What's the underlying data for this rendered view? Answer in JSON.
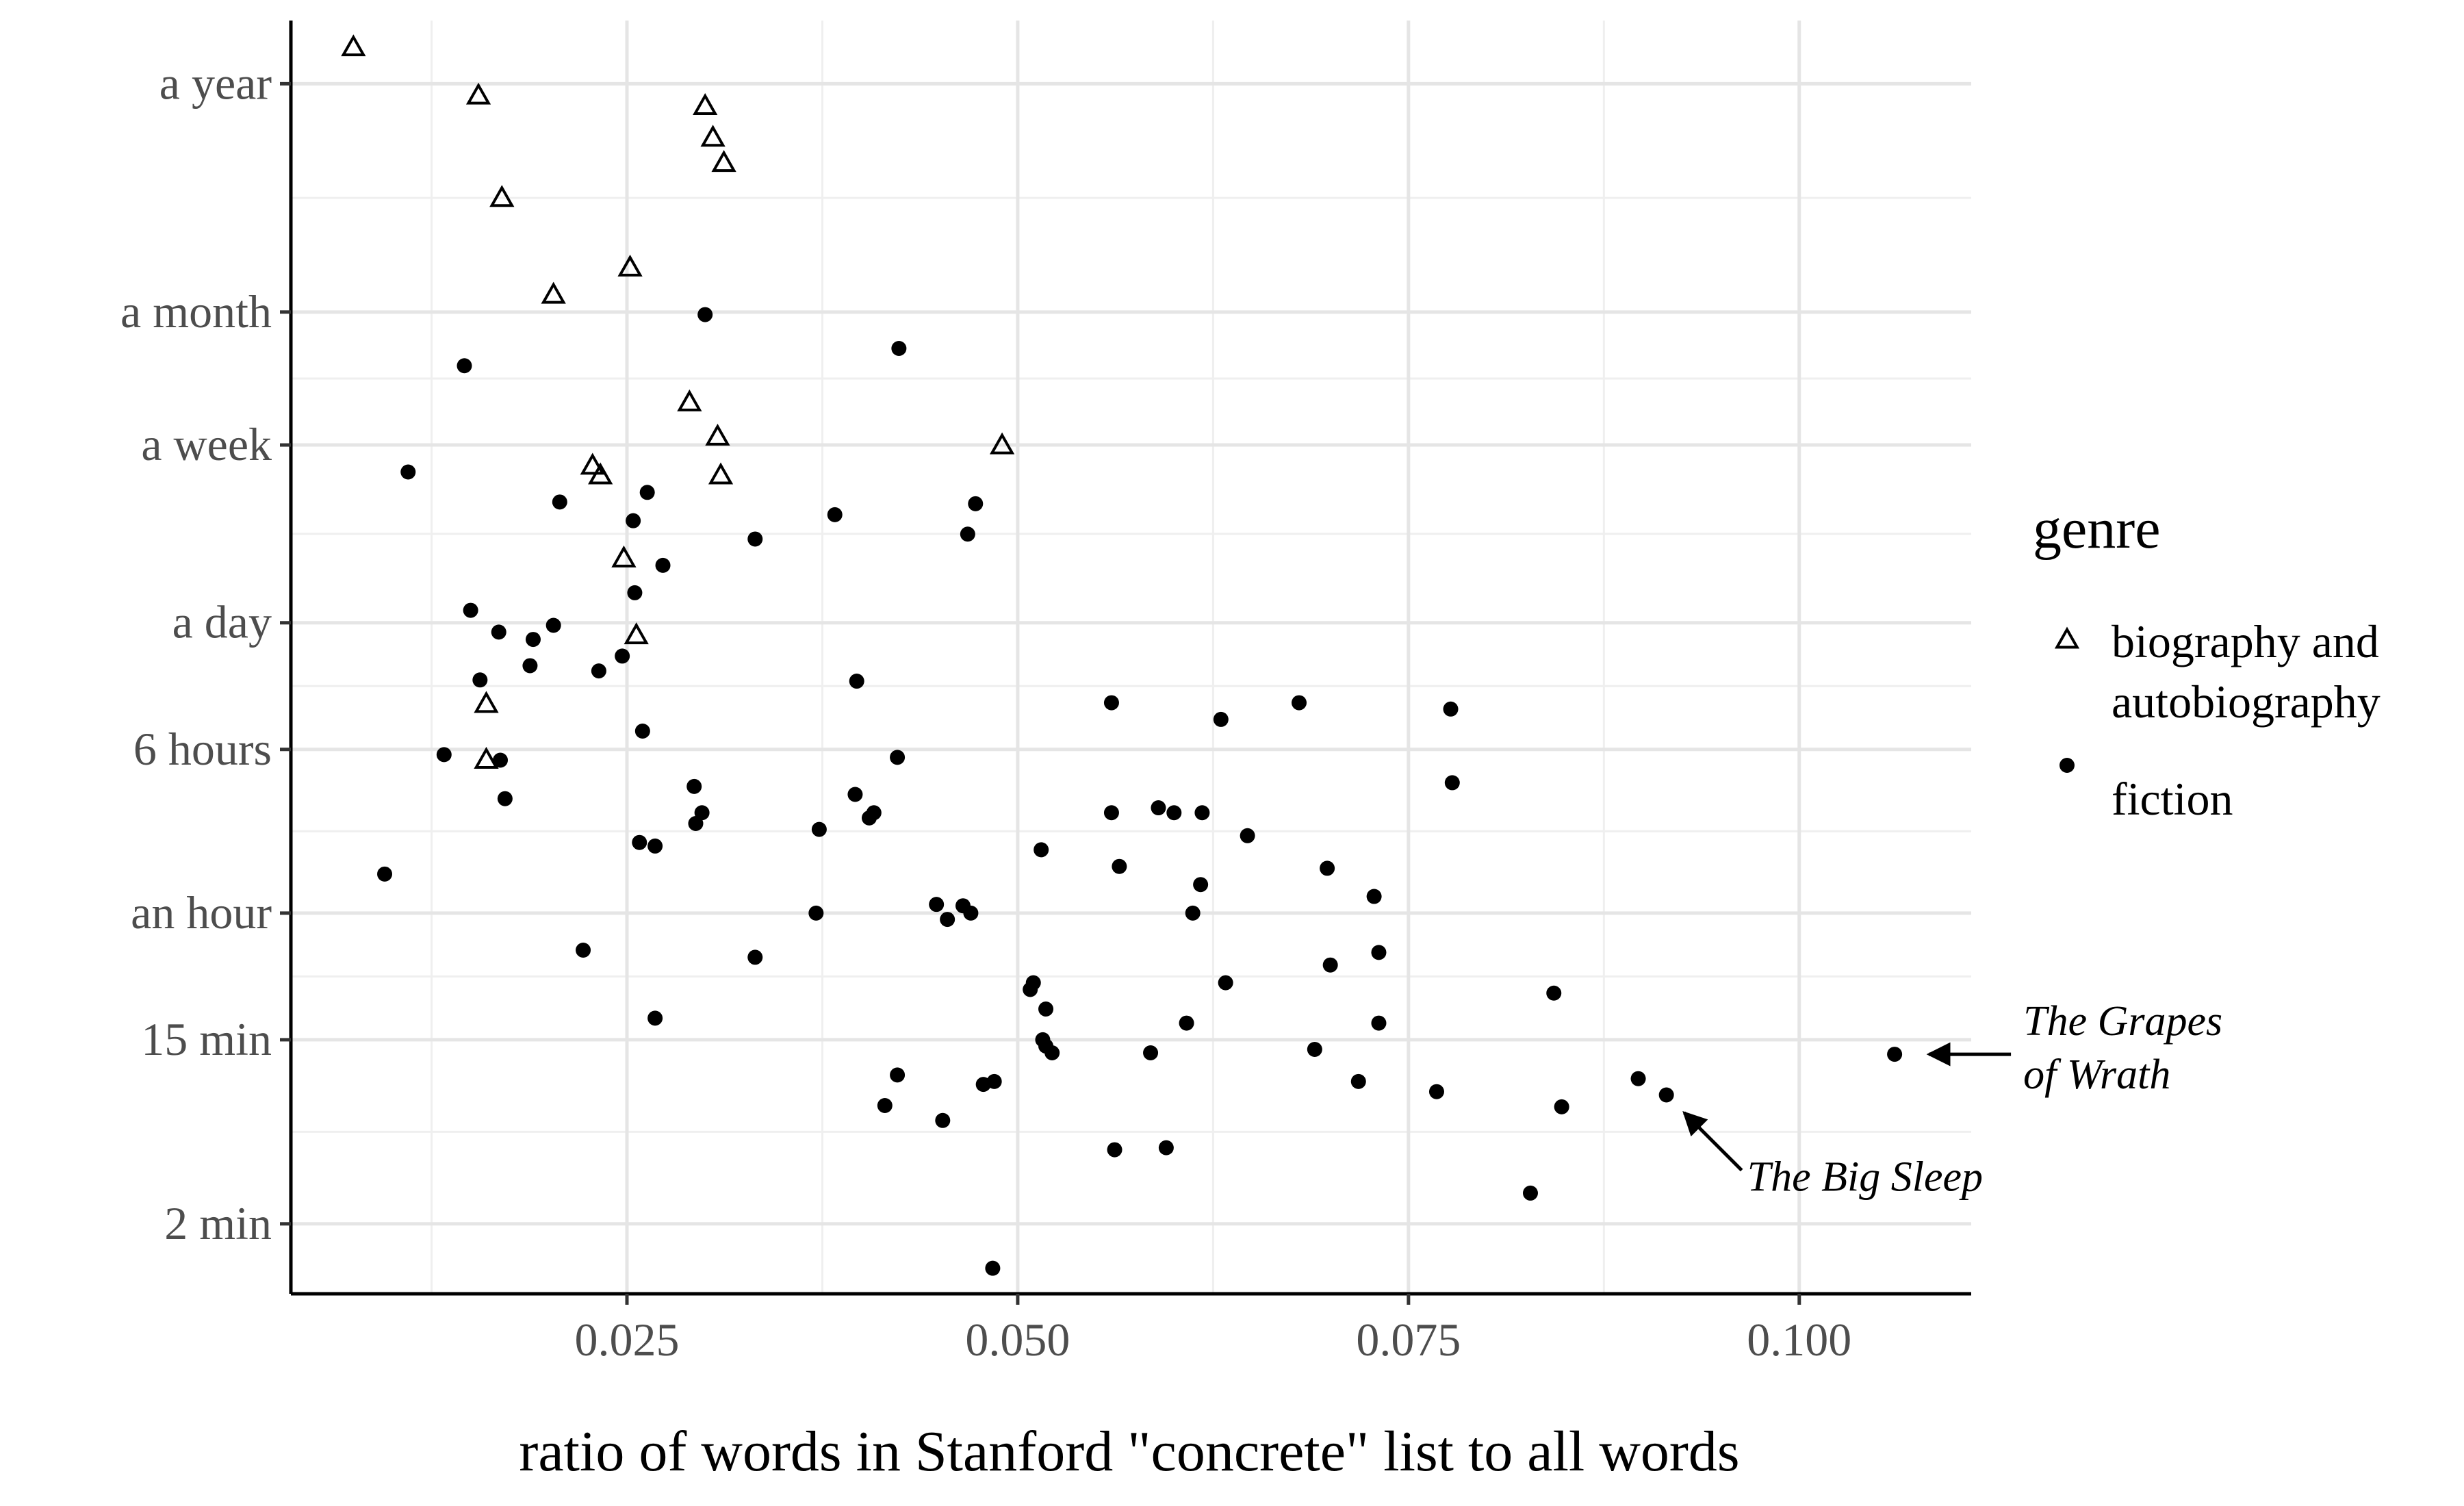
{
  "chart_data": {
    "type": "scatter",
    "xlabel": "ratio of words in Stanford \"concrete\" list to all words",
    "ylabel": "",
    "xlim": [
      0.0035,
      0.111
    ],
    "x_ticks": [
      0.025,
      0.05,
      0.075,
      0.1
    ],
    "x_tick_labels": [
      "0.025",
      "0.050",
      "0.075",
      "0.100"
    ],
    "y_scale": "log",
    "y_unit": "minutes",
    "ylim": [
      0.93,
      1050000
    ],
    "y_ticks": [
      2,
      15,
      60,
      360,
      1440,
      10080,
      43200,
      525600
    ],
    "y_tick_labels": [
      "2 min",
      "15 min",
      "an hour",
      "6 hours",
      "a day",
      "a week",
      "a month",
      "a year"
    ],
    "grid": true,
    "legend": {
      "title": "genre",
      "placement": "right",
      "entries": [
        {
          "label_lines": [
            "biography and",
            "autobiography"
          ],
          "shape": "open-triangle"
        },
        {
          "label_lines": [
            "fiction"
          ],
          "shape": "filled-circle"
        }
      ]
    },
    "series": [
      {
        "name": "biography and autobiography",
        "shape": "open-triangle",
        "points": [
          [
            0.0075,
            780000
          ],
          [
            0.0155,
            460000
          ],
          [
            0.03,
            410000
          ],
          [
            0.0305,
            290000
          ],
          [
            0.0312,
            220000
          ],
          [
            0.017,
            150000
          ],
          [
            0.0252,
            70000
          ],
          [
            0.0203,
            52000
          ],
          [
            0.029,
            16000
          ],
          [
            0.0308,
            11000
          ],
          [
            0.049,
            10000
          ],
          [
            0.0228,
            8000
          ],
          [
            0.0233,
            7200
          ],
          [
            0.031,
            7200
          ],
          [
            0.0248,
            2900
          ],
          [
            0.0256,
            1250
          ],
          [
            0.016,
            590
          ],
          [
            0.016,
            320
          ]
        ]
      },
      {
        "name": "fiction",
        "shape": "filled-circle",
        "points": [
          [
            0.03,
            42000
          ],
          [
            0.0424,
            29000
          ],
          [
            0.0146,
            24000
          ],
          [
            0.011,
            7500
          ],
          [
            0.0207,
            5400
          ],
          [
            0.0263,
            6000
          ],
          [
            0.0254,
            4400
          ],
          [
            0.0383,
            4700
          ],
          [
            0.0473,
            5300
          ],
          [
            0.0468,
            3800
          ],
          [
            0.0332,
            3600
          ],
          [
            0.0273,
            2700
          ],
          [
            0.0255,
            2000
          ],
          [
            0.015,
            1650
          ],
          [
            0.0168,
            1300
          ],
          [
            0.0203,
            1400
          ],
          [
            0.019,
            1200
          ],
          [
            0.0188,
            900
          ],
          [
            0.0232,
            850
          ],
          [
            0.0247,
            1000
          ],
          [
            0.0156,
            770
          ],
          [
            0.0397,
            760
          ],
          [
            0.056,
            600
          ],
          [
            0.068,
            600
          ],
          [
            0.0777,
            560
          ],
          [
            0.063,
            500
          ],
          [
            0.026,
            440
          ],
          [
            0.0133,
            340
          ],
          [
            0.0169,
            320
          ],
          [
            0.0423,
            330
          ],
          [
            0.0293,
            240
          ],
          [
            0.0778,
            250
          ],
          [
            0.0172,
            210
          ],
          [
            0.0396,
            220
          ],
          [
            0.0408,
            180
          ],
          [
            0.0405,
            170
          ],
          [
            0.0298,
            180
          ],
          [
            0.0294,
            160
          ],
          [
            0.0373,
            150
          ],
          [
            0.056,
            180
          ],
          [
            0.059,
            190
          ],
          [
            0.06,
            180
          ],
          [
            0.0618,
            180
          ],
          [
            0.0258,
            130
          ],
          [
            0.0268,
            125
          ],
          [
            0.0647,
            140
          ],
          [
            0.0515,
            120
          ],
          [
            0.0565,
            100
          ],
          [
            0.0698,
            98
          ],
          [
            0.0617,
            82
          ],
          [
            0.0728,
            72
          ],
          [
            0.0095,
            92
          ],
          [
            0.0448,
            66
          ],
          [
            0.0465,
            65
          ],
          [
            0.0455,
            56
          ],
          [
            0.047,
            60
          ],
          [
            0.0371,
            60
          ],
          [
            0.0612,
            60
          ],
          [
            0.0222,
            40
          ],
          [
            0.0332,
            37
          ],
          [
            0.0731,
            39
          ],
          [
            0.07,
            34
          ],
          [
            0.051,
            28
          ],
          [
            0.0508,
            26
          ],
          [
            0.0633,
            28
          ],
          [
            0.0843,
            25
          ],
          [
            0.0518,
            21
          ],
          [
            0.0608,
            18
          ],
          [
            0.0731,
            18
          ],
          [
            0.0268,
            19
          ],
          [
            0.0516,
            15
          ],
          [
            0.0518,
            14
          ],
          [
            0.0522,
            13
          ],
          [
            0.0585,
            13
          ],
          [
            0.069,
            13.5
          ],
          [
            0.1061,
            12.8
          ],
          [
            0.0423,
            10.2
          ],
          [
            0.0478,
            9.2
          ],
          [
            0.0485,
            9.5
          ],
          [
            0.0718,
            9.5
          ],
          [
            0.0897,
            9.8
          ],
          [
            0.0768,
            8.5
          ],
          [
            0.0915,
            8.2
          ],
          [
            0.0415,
            7.3
          ],
          [
            0.0848,
            7.2
          ],
          [
            0.0452,
            6.2
          ],
          [
            0.0562,
            4.5
          ],
          [
            0.0595,
            4.6
          ],
          [
            0.0828,
            2.8
          ],
          [
            0.0484,
            1.23
          ]
        ]
      }
    ],
    "annotations": [
      {
        "lines": [
          "The Grapes",
          "of Wrath"
        ],
        "points_to": [
          0.1061,
          12.8
        ]
      },
      {
        "lines": [
          "The Big Sleep"
        ],
        "points_to": [
          0.0915,
          8.2
        ]
      }
    ]
  }
}
